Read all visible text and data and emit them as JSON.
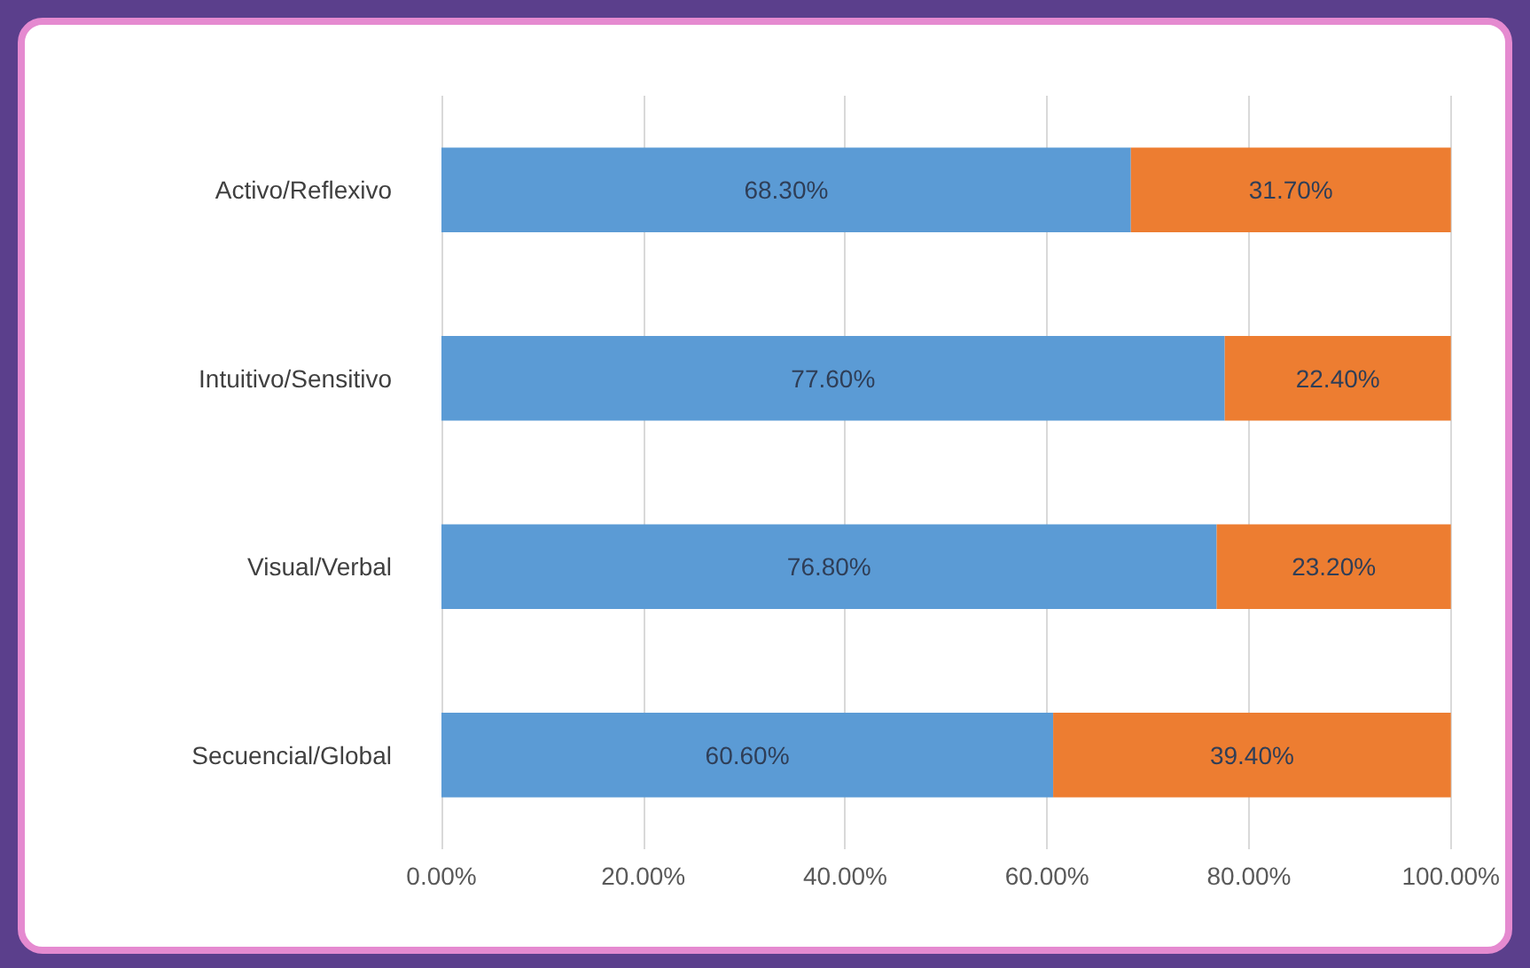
{
  "chart_data": {
    "type": "bar",
    "orientation": "horizontal",
    "stacked": true,
    "grid": "x",
    "categories": [
      "Activo/Reflexivo",
      "Intuitivo/Sensitivo",
      "Visual/Verbal",
      "Secuencial/Global"
    ],
    "series": [
      {
        "color": "#5b9bd5",
        "values": [
          68.3,
          77.6,
          76.8,
          60.6
        ],
        "value_labels": [
          "68.30%",
          "77.60%",
          "76.80%",
          "60.60%"
        ]
      },
      {
        "color": "#ed7d31",
        "values": [
          31.7,
          22.4,
          23.2,
          39.4
        ],
        "value_labels": [
          "31.70%",
          "22.40%",
          "23.20%",
          "39.40%"
        ]
      }
    ],
    "xlim": [
      0,
      100
    ],
    "xticks": [
      {
        "value": 0,
        "label": "0.00%"
      },
      {
        "value": 20,
        "label": "20.00%"
      },
      {
        "value": 40,
        "label": "40.00%"
      },
      {
        "value": 60,
        "label": "60.00%"
      },
      {
        "value": 80,
        "label": "80.00%"
      },
      {
        "value": 100,
        "label": "100.00%"
      }
    ]
  }
}
